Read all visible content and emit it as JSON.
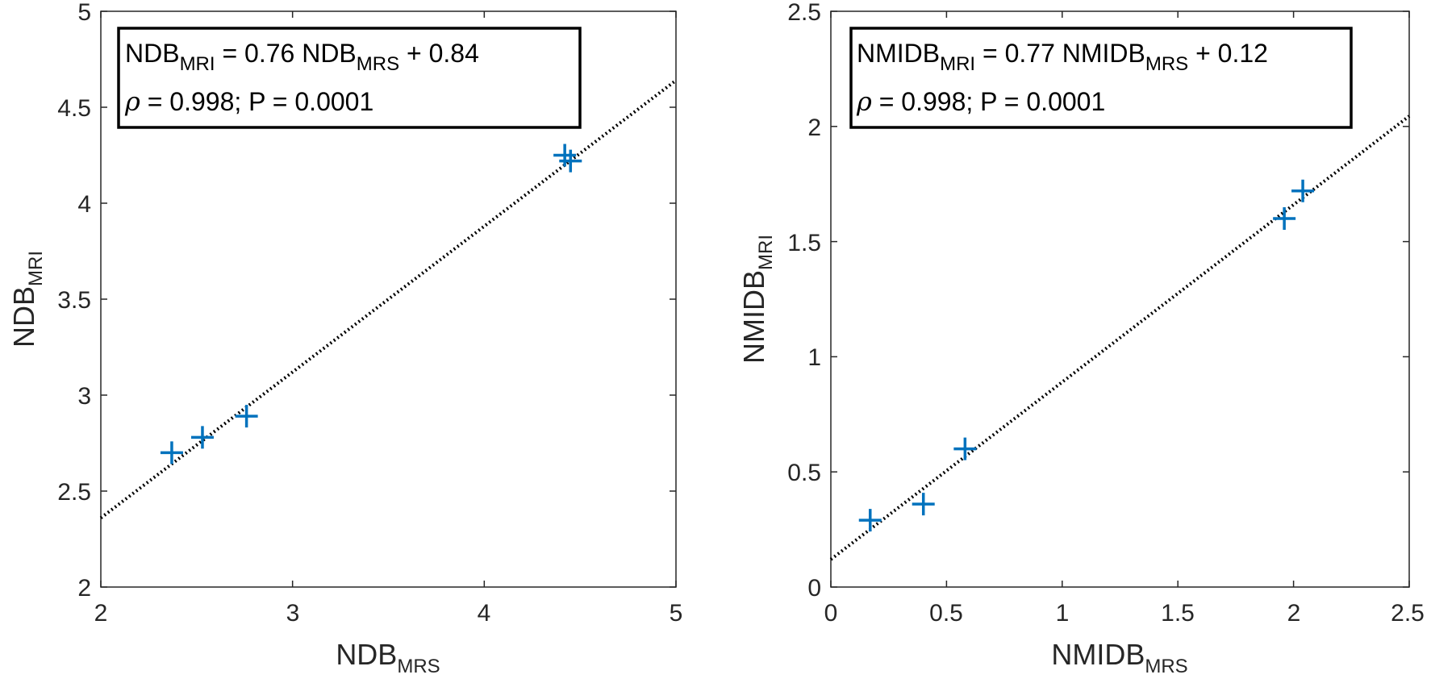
{
  "chart_data": [
    {
      "type": "scatter",
      "xlabel": "NDB",
      "xlabel_sub": "MRS",
      "ylabel": "NDB",
      "ylabel_sub": "MRI",
      "xlim": [
        2,
        5
      ],
      "ylim": [
        2,
        5
      ],
      "xticks": [
        2,
        3,
        4,
        5
      ],
      "xtick_labels": [
        "2",
        "3",
        "4",
        "5"
      ],
      "yticks": [
        2,
        2.5,
        3,
        3.5,
        4,
        4.5,
        5
      ],
      "ytick_labels": [
        "2",
        "2.5",
        "3",
        "3.5",
        "4",
        "4.5",
        "5"
      ],
      "points": [
        {
          "x": 2.37,
          "y": 2.7
        },
        {
          "x": 2.53,
          "y": 2.78
        },
        {
          "x": 2.76,
          "y": 2.89
        },
        {
          "x": 4.42,
          "y": 4.25
        },
        {
          "x": 4.45,
          "y": 4.22
        }
      ],
      "fit": {
        "slope": 0.76,
        "intercept": 0.84
      },
      "annotation": {
        "line1": {
          "a": "NDB",
          "a_sub": "MRI",
          "b": " = 0.76 NDB",
          "b_sub": "MRS",
          "c": " + 0.84"
        },
        "line2": {
          "rho": "ρ",
          "rest": " = 0.998; P = 0.0001"
        }
      },
      "marker_color": "#0072BD",
      "line_color": "#000000",
      "grid": false,
      "legend": "none"
    },
    {
      "type": "scatter",
      "xlabel": "NMIDB",
      "xlabel_sub": "MRS",
      "ylabel": "NMIDB",
      "ylabel_sub": "MRI",
      "xlim": [
        0,
        2.5
      ],
      "ylim": [
        0,
        2.5
      ],
      "xticks": [
        0,
        0.5,
        1,
        1.5,
        2,
        2.5
      ],
      "xtick_labels": [
        "0",
        "0.5",
        "1",
        "1.5",
        "2",
        "2.5"
      ],
      "yticks": [
        0,
        0.5,
        1,
        1.5,
        2,
        2.5
      ],
      "ytick_labels": [
        "0",
        "0.5",
        "1",
        "1.5",
        "2",
        "2.5"
      ],
      "points": [
        {
          "x": 0.17,
          "y": 0.29
        },
        {
          "x": 0.4,
          "y": 0.36
        },
        {
          "x": 0.58,
          "y": 0.6
        },
        {
          "x": 1.96,
          "y": 1.6
        },
        {
          "x": 2.04,
          "y": 1.72
        }
      ],
      "fit": {
        "slope": 0.77,
        "intercept": 0.12
      },
      "annotation": {
        "line1": {
          "a": "NMIDB",
          "a_sub": "MRI",
          "b": " = 0.77 NMIDB",
          "b_sub": "MRS",
          "c": " + 0.12"
        },
        "line2": {
          "rho": "ρ",
          "rest": " = 0.998; P = 0.0001"
        }
      },
      "marker_color": "#0072BD",
      "line_color": "#000000",
      "grid": false,
      "legend": "none"
    }
  ]
}
